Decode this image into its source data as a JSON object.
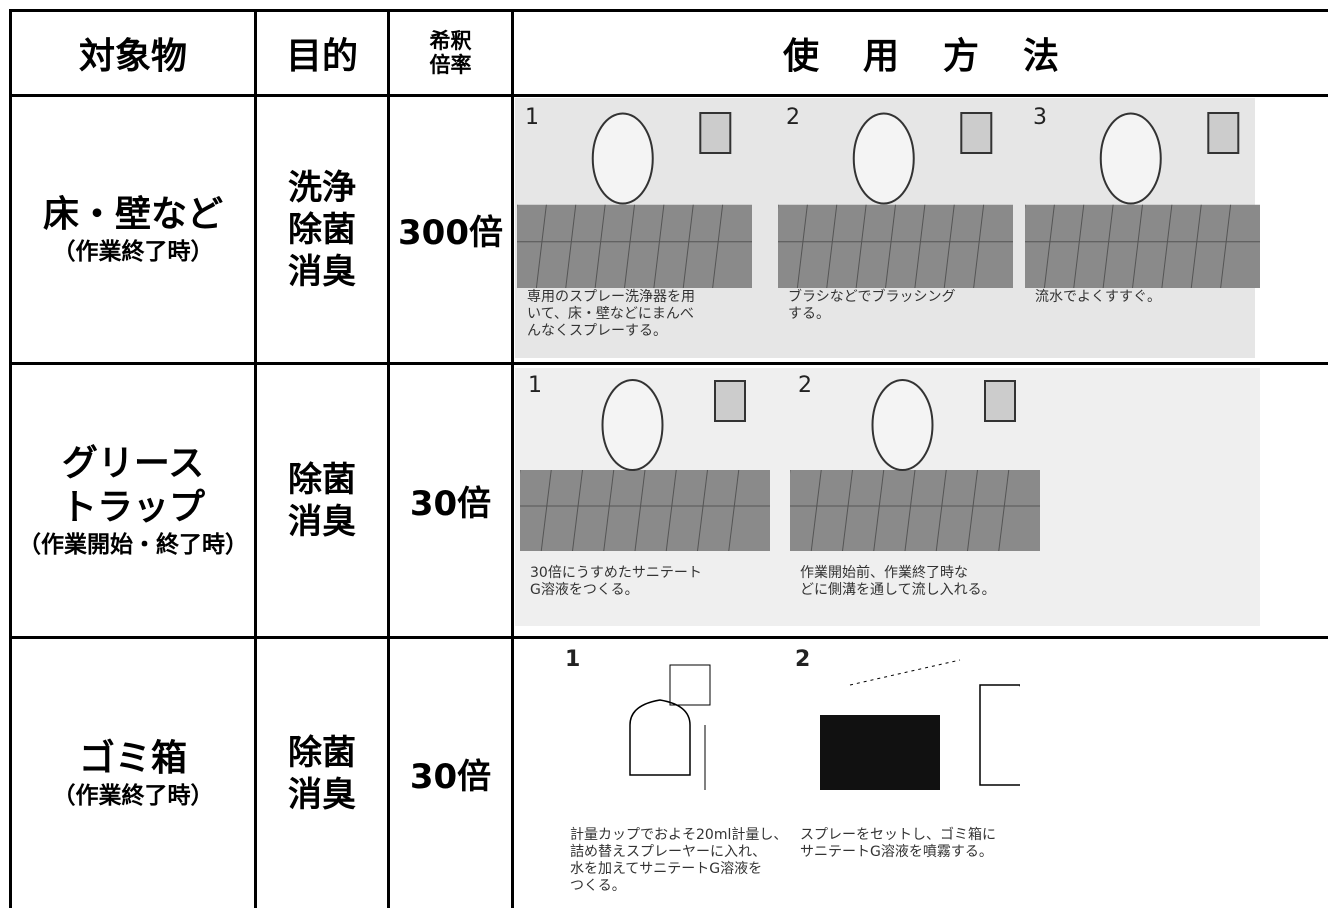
{
  "table": {
    "header": {
      "object": "対象物",
      "purpose": "目的",
      "dilution": [
        "希釈",
        "倍率"
      ],
      "method": "使用方法"
    },
    "rows": [
      {
        "object": [
          "床・壁など"
        ],
        "note": "（作業終了時）",
        "purpose": [
          "洗浄",
          "除菌",
          "消臭"
        ],
        "dilution": "300倍",
        "steps": [
          {
            "number": "1",
            "text": [
              "専用のスプレー洗浄器を用",
              "いて、床・壁などにまんべ",
              "んなくスプレーする。"
            ]
          },
          {
            "number": "2",
            "text": [
              "ブラシなどでブラッシング",
              "する。"
            ]
          },
          {
            "number": "3",
            "text": [
              "流水でよくすすぐ。"
            ]
          }
        ]
      },
      {
        "object": [
          "グリース",
          "トラップ"
        ],
        "note": "（作業開始・終了時）",
        "purpose": [
          "除菌",
          "消臭"
        ],
        "dilution": "30倍",
        "steps": [
          {
            "number": "1",
            "text": [
              "30倍にうすめたサニテート",
              "G溶液をつくる。"
            ]
          },
          {
            "number": "2",
            "text": [
              "作業開始前、作業終了時な",
              "どに側溝を通して流し入れる。"
            ]
          }
        ]
      },
      {
        "object": [
          "ゴミ箱"
        ],
        "note": "（作業終了時）",
        "purpose": [
          "除菌",
          "消臭"
        ],
        "dilution": "30倍",
        "steps": [
          {
            "number": "1",
            "text": [
              "計量カップでおよそ20ml計量し、",
              "詰め替えスプレーヤーに入れ、",
              "水を加えてサニテートG溶液を",
              "つくる。"
            ]
          },
          {
            "number": "2",
            "text": [
              "スプレーをセットし、ゴミ箱に",
              "サニテートG溶液を噴霧する。"
            ]
          }
        ]
      }
    ]
  }
}
